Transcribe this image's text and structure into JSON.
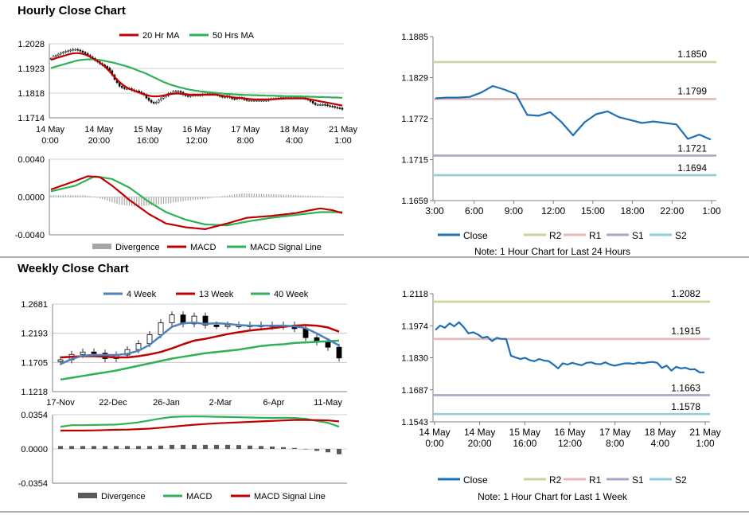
{
  "sections": {
    "hourly_title": "Hourly Close Chart",
    "weekly_title": "Weekly Close Chart"
  },
  "colors": {
    "ma_short": "#c00000",
    "ma_long": "#2eb157",
    "close": "#1f6fb3",
    "weekly_4": "#4f81bd",
    "r2": "#c3d69b",
    "r1": "#e6b9b8",
    "s1": "#b3a2c7",
    "s2": "#93cddd",
    "divergence_light": "#a6a6a6",
    "divergence_dark": "#595959",
    "separator": "#7f7f7f",
    "grid": "#bfbfbf"
  },
  "chart_data": [
    {
      "id": "hourly-price",
      "type": "candlestick",
      "legend": [
        "20 Hr MA",
        "50 Hrs MA"
      ],
      "y_ticks": [
        "1.2028",
        "1.1923",
        "1.1818",
        "1.1714"
      ],
      "ylim": [
        1.1714,
        1.2028
      ],
      "x_tick_labels": [
        [
          "14 May",
          "0:00"
        ],
        [
          "14 May",
          "20:00"
        ],
        [
          "15 May",
          "16:00"
        ],
        [
          "16 May",
          "12:00"
        ],
        [
          "17 May",
          "8:00"
        ],
        [
          "18 May",
          "4:00"
        ],
        [
          "21 May",
          "1:00"
        ]
      ],
      "n_bars": 120,
      "close": [
        1.1965,
        1.1975,
        1.1978,
        1.1984,
        1.1988,
        1.1992,
        1.1996,
        1.1998,
        1.2001,
        1.2004,
        1.2004,
        1.2001,
        1.1997,
        1.1992,
        1.1987,
        1.1979,
        1.1972,
        1.1966,
        1.1958,
        1.1952,
        1.1944,
        1.1938,
        1.1932,
        1.1925,
        1.1914,
        1.1896,
        1.1877,
        1.1863,
        1.1848,
        1.1842,
        1.1838,
        1.1838,
        1.1838,
        1.1832,
        1.1828,
        1.1828,
        1.1823,
        1.1817,
        1.1811,
        1.1798,
        1.1788,
        1.178,
        1.1776,
        1.178,
        1.1789,
        1.1797,
        1.1803,
        1.1808,
        1.1817,
        1.1819,
        1.1826,
        1.1826,
        1.1826,
        1.1822,
        1.1812,
        1.1808,
        1.1805,
        1.1808,
        1.181,
        1.181,
        1.181,
        1.181,
        1.1814,
        1.1814,
        1.1816,
        1.1816,
        1.1816,
        1.1816,
        1.1811,
        1.1805,
        1.1802,
        1.1802,
        1.1805,
        1.1801,
        1.1795,
        1.1794,
        1.1796,
        1.18,
        1.1797,
        1.1791,
        1.1788,
        1.1788,
        1.1788,
        1.1788,
        1.1788,
        1.1788,
        1.1788,
        1.1788,
        1.1788,
        1.1791,
        1.1794,
        1.1794,
        1.1796,
        1.1798,
        1.18,
        1.18,
        1.18,
        1.18,
        1.18,
        1.18,
        1.18,
        1.18,
        1.18,
        1.18,
        1.1796,
        1.179,
        1.1784,
        1.1776,
        1.177,
        1.177,
        1.177,
        1.177,
        1.1769,
        1.1765,
        1.1763,
        1.1762,
        1.1758,
        1.1756,
        1.1755,
        1.175
      ],
      "ma20": [
        1.196,
        1.1963,
        1.1967,
        1.197,
        1.1973,
        1.1976,
        1.1979,
        1.1982,
        1.1985,
        1.1987,
        1.1988,
        1.1988,
        1.1987,
        1.1985,
        1.1982,
        1.1978,
        1.1973,
        1.1967,
        1.1961,
        1.1955,
        1.1948,
        1.194,
        1.1931,
        1.1921,
        1.191,
        1.1898,
        1.1887,
        1.1876,
        1.1866,
        1.1857,
        1.1849,
        1.1843,
        1.1837,
        1.1833,
        1.1829,
        1.1825,
        1.1821,
        1.1817,
        1.1814,
        1.1811,
        1.1808,
        1.1806,
        1.1805,
        1.1805,
        1.1806,
        1.1807,
        1.1809,
        1.1811,
        1.1813,
        1.1815,
        1.1816,
        1.1817,
        1.1817,
        1.1816,
        1.1815,
        1.1814,
        1.1813,
        1.1812,
        1.1812,
        1.1812,
        1.1812,
        1.1812,
        1.1812,
        1.1812,
        1.1812,
        1.1812,
        1.1812,
        1.1812,
        1.1811,
        1.1809,
        1.1808,
        1.1806,
        1.1805,
        1.1803,
        1.1801,
        1.18,
        1.1799,
        1.1798,
        1.1797,
        1.1796,
        1.1795,
        1.1794,
        1.1793,
        1.1792,
        1.1792,
        1.1792,
        1.1792,
        1.1792,
        1.1792,
        1.1792,
        1.1793,
        1.1793,
        1.1794,
        1.1794,
        1.1795,
        1.1795,
        1.1796,
        1.1796,
        1.1796,
        1.1796,
        1.1796,
        1.1796,
        1.1796,
        1.1796,
        1.1795,
        1.1794,
        1.1792,
        1.179,
        1.1788,
        1.1786,
        1.1784,
        1.1782,
        1.178,
        1.1778,
        1.1776,
        1.1774,
        1.1772,
        1.177,
        1.1768,
        1.1766
      ],
      "ma50": [
        1.1925,
        1.1928,
        1.1931,
        1.1934,
        1.1937,
        1.194,
        1.1943,
        1.1946,
        1.1949,
        1.1952,
        1.1955,
        1.1957,
        1.1959,
        1.196,
        1.1961,
        1.1962,
        1.1962,
        1.1962,
        1.1961,
        1.196,
        1.1959,
        1.1957,
        1.1955,
        1.1953,
        1.1951,
        1.1949,
        1.1947,
        1.1944,
        1.1941,
        1.1938,
        1.1935,
        1.1932,
        1.1929,
        1.1925,
        1.1921,
        1.1917,
        1.1913,
        1.1909,
        1.1905,
        1.1901,
        1.1896,
        1.1891,
        1.1886,
        1.1881,
        1.1876,
        1.1871,
        1.1866,
        1.1862,
        1.1858,
        1.1854,
        1.1851,
        1.1848,
        1.1845,
        1.1842,
        1.184,
        1.1837,
        1.1835,
        1.1833,
        1.1831,
        1.1829,
        1.1828,
        1.1826,
        1.1825,
        1.1824,
        1.1823,
        1.1822,
        1.1821,
        1.182,
        1.1819,
        1.1818,
        1.1817,
        1.1816,
        1.1815,
        1.1815,
        1.1814,
        1.1813,
        1.1813,
        1.1812,
        1.1812,
        1.1811,
        1.1811,
        1.1811,
        1.181,
        1.181,
        1.181,
        1.1809,
        1.1809,
        1.1809,
        1.1808,
        1.1808,
        1.1808,
        1.1808,
        1.1807,
        1.1807,
        1.1807,
        1.1806,
        1.1806,
        1.1806,
        1.1806,
        1.1805,
        1.1805,
        1.1805,
        1.1805,
        1.1804,
        1.1804,
        1.1804,
        1.1803,
        1.1803,
        1.1803,
        1.1802,
        1.1802,
        1.1802,
        1.1801,
        1.1801,
        1.1801,
        1.18,
        1.18,
        1.18,
        1.1799,
        1.1799
      ]
    },
    {
      "id": "hourly-macd",
      "type": "macd",
      "legend": [
        "Divergence",
        "MACD",
        "MACD Signal Line"
      ],
      "y_ticks": [
        "0.0040",
        "0.0000",
        "-0.0040"
      ],
      "ylim": [
        -0.004,
        0.004
      ],
      "n_bars": 120,
      "macd_keys": [
        [
          0,
          0.0008
        ],
        [
          10,
          0.0017
        ],
        [
          15,
          0.0022
        ],
        [
          20,
          0.0021
        ],
        [
          25,
          0.0012
        ],
        [
          32,
          -0.0003
        ],
        [
          40,
          -0.0018
        ],
        [
          47,
          -0.0028
        ],
        [
          55,
          -0.0032
        ],
        [
          63,
          -0.0034
        ],
        [
          72,
          -0.0028
        ],
        [
          80,
          -0.0022
        ],
        [
          90,
          -0.002
        ],
        [
          100,
          -0.0017
        ],
        [
          110,
          -0.0012
        ],
        [
          115,
          -0.0014
        ],
        [
          119,
          -0.0017
        ]
      ],
      "signal_keys": [
        [
          0,
          0.0006
        ],
        [
          10,
          0.0012
        ],
        [
          18,
          0.0022
        ],
        [
          25,
          0.0019
        ],
        [
          32,
          0.001
        ],
        [
          40,
          -0.0005
        ],
        [
          47,
          -0.0016
        ],
        [
          55,
          -0.0024
        ],
        [
          63,
          -0.0029
        ],
        [
          72,
          -0.003
        ],
        [
          80,
          -0.0026
        ],
        [
          90,
          -0.0022
        ],
        [
          100,
          -0.0019
        ],
        [
          110,
          -0.0016
        ],
        [
          119,
          -0.0016
        ]
      ],
      "div_keys": [
        [
          0,
          0.0002
        ],
        [
          14,
          0.0002
        ],
        [
          18,
          0.0
        ],
        [
          22,
          -0.0003
        ],
        [
          28,
          -0.0008
        ],
        [
          34,
          -0.001
        ],
        [
          40,
          -0.0009
        ],
        [
          47,
          -0.0007
        ],
        [
          55,
          -0.0004
        ],
        [
          63,
          -0.0002
        ],
        [
          70,
          0.0001
        ],
        [
          78,
          0.0004
        ],
        [
          90,
          0.0003
        ],
        [
          100,
          0.0002
        ],
        [
          110,
          0.0001
        ],
        [
          119,
          -0.0001
        ]
      ]
    },
    {
      "id": "hourly-close-24h",
      "type": "line",
      "legend": [
        "Close",
        "R2",
        "R1",
        "S1",
        "S2"
      ],
      "note": "Note: 1 Hour Chart for Last 24 Hours",
      "y_ticks": [
        "1.1885",
        "1.1829",
        "1.1772",
        "1.1715",
        "1.1659"
      ],
      "ylim": [
        1.1659,
        1.1885
      ],
      "x_ticks": [
        "3:00",
        "6:00",
        "9:00",
        "12:00",
        "15:00",
        "18:00",
        "22:00",
        "1:00"
      ],
      "close": [
        1.18,
        1.1801,
        1.1801,
        1.1802,
        1.1808,
        1.1817,
        1.1812,
        1.1806,
        1.1777,
        1.1776,
        1.1781,
        1.1767,
        1.1749,
        1.1767,
        1.1778,
        1.1782,
        1.1774,
        1.177,
        1.1766,
        1.1768,
        1.1766,
        1.1764,
        1.1744,
        1.175,
        1.1743
      ],
      "levels": [
        {
          "name": "R2",
          "value": 1.185,
          "label": "1.1850"
        },
        {
          "name": "R1",
          "value": 1.1799,
          "label": "1.1799"
        },
        {
          "name": "S1",
          "value": 1.1721,
          "label": "1.1721"
        },
        {
          "name": "S2",
          "value": 1.1694,
          "label": "1.1694"
        }
      ]
    },
    {
      "id": "weekly-price",
      "type": "candlestick",
      "legend": [
        "4 Week",
        "13 Week",
        "40 Week"
      ],
      "y_ticks": [
        "1.2681",
        "1.2193",
        "1.1705",
        "1.1218"
      ],
      "ylim": [
        1.1218,
        1.2681
      ],
      "x_ticks": [
        "17-Nov",
        "22-Dec",
        "26-Jan",
        "2-Mar",
        "6-Apr",
        "11-May"
      ],
      "n_bars": 26,
      "close": [
        1.175,
        1.184,
        1.188,
        1.186,
        1.177,
        1.183,
        1.192,
        1.202,
        1.217,
        1.237,
        1.25,
        1.235,
        1.248,
        1.233,
        1.232,
        1.233,
        1.233,
        1.231,
        1.233,
        1.231,
        1.233,
        1.227,
        1.212,
        1.205,
        1.196,
        1.178
      ],
      "ma4": [
        1.168,
        1.176,
        1.182,
        1.183,
        1.183,
        1.183,
        1.185,
        1.19,
        1.2,
        1.215,
        1.23,
        1.236,
        1.237,
        1.235,
        1.236,
        1.235,
        1.233,
        1.232,
        1.232,
        1.232,
        1.232,
        1.231,
        1.228,
        1.219,
        1.209,
        1.199
      ],
      "ma13": [
        1.179,
        1.18,
        1.181,
        1.181,
        1.18,
        1.179,
        1.179,
        1.181,
        1.184,
        1.188,
        1.194,
        1.201,
        1.207,
        1.21,
        1.214,
        1.218,
        1.221,
        1.224,
        1.226,
        1.228,
        1.23,
        1.232,
        1.233,
        1.232,
        1.229,
        1.222
      ],
      "ma40": [
        1.142,
        1.145,
        1.148,
        1.151,
        1.154,
        1.157,
        1.161,
        1.165,
        1.169,
        1.173,
        1.177,
        1.18,
        1.183,
        1.186,
        1.188,
        1.19,
        1.192,
        1.195,
        1.198,
        1.2,
        1.201,
        1.203,
        1.204,
        1.205,
        1.206,
        1.207
      ]
    },
    {
      "id": "weekly-macd",
      "type": "macd",
      "legend": [
        "Divergence",
        "MACD",
        "MACD Signal Line"
      ],
      "y_ticks": [
        "0.0354",
        "0.0000",
        "-0.0354"
      ],
      "ylim": [
        -0.0354,
        0.0354
      ],
      "n_bars": 26,
      "macd": [
        0.023,
        0.0245,
        0.0245,
        0.0248,
        0.025,
        0.0252,
        0.0262,
        0.0275,
        0.0295,
        0.0315,
        0.033,
        0.0335,
        0.0336,
        0.0335,
        0.0333,
        0.033,
        0.0328,
        0.0325,
        0.0322,
        0.032,
        0.0322,
        0.032,
        0.0312,
        0.029,
        0.027,
        0.023
      ],
      "signal": [
        0.019,
        0.019,
        0.019,
        0.0192,
        0.0195,
        0.0198,
        0.02,
        0.0205,
        0.021,
        0.022,
        0.023,
        0.024,
        0.025,
        0.0258,
        0.0265,
        0.027,
        0.0275,
        0.028,
        0.0285,
        0.029,
        0.0295,
        0.03,
        0.03,
        0.0298,
        0.0295,
        0.0285
      ],
      "divergence": [
        0.003,
        0.003,
        0.003,
        0.003,
        0.003,
        0.003,
        0.003,
        0.003,
        0.003,
        0.0035,
        0.0042,
        0.0042,
        0.0042,
        0.0042,
        0.0042,
        0.0042,
        0.004,
        0.0035,
        0.003,
        0.0025,
        0.0018,
        0.001,
        0.0,
        -0.002,
        -0.0035,
        -0.0055
      ]
    },
    {
      "id": "weekly-close-1w",
      "type": "line",
      "legend": [
        "Close",
        "R2",
        "R1",
        "S1",
        "S2"
      ],
      "note": "Note: 1 Hour Chart for Last 1 Week",
      "y_ticks": [
        "1.2118",
        "1.1974",
        "1.1830",
        "1.1687",
        "1.1543"
      ],
      "ylim": [
        1.1543,
        1.2118
      ],
      "x_tick_labels": [
        [
          "14 May",
          "0:00"
        ],
        [
          "14 May",
          "20:00"
        ],
        [
          "15 May",
          "16:00"
        ],
        [
          "16 May",
          "12:00"
        ],
        [
          "17 May",
          "8:00"
        ],
        [
          "18 May",
          "4:00"
        ],
        [
          "21 May",
          "1:00"
        ]
      ],
      "close": [
        1.1955,
        1.1975,
        1.1965,
        1.1985,
        1.1972,
        1.199,
        1.1968,
        1.194,
        1.1945,
        1.1935,
        1.192,
        1.1925,
        1.1905,
        1.192,
        1.1915,
        1.1915,
        1.184,
        1.1832,
        1.1825,
        1.183,
        1.182,
        1.1815,
        1.1825,
        1.1818,
        1.1816,
        1.18,
        1.1783,
        1.1806,
        1.18,
        1.1808,
        1.1802,
        1.1797,
        1.1808,
        1.181,
        1.1803,
        1.1802,
        1.181,
        1.18,
        1.1795,
        1.18,
        1.1805,
        1.1806,
        1.1803,
        1.1809,
        1.1806,
        1.181,
        1.1812,
        1.1808,
        1.1785,
        1.1795,
        1.1773,
        1.179,
        1.1783,
        1.1786,
        1.1778,
        1.1779,
        1.1765,
        1.1765
      ],
      "levels": [
        {
          "name": "R2",
          "value": 1.2082,
          "label": "1.2082"
        },
        {
          "name": "R1",
          "value": 1.1915,
          "label": "1.1915"
        },
        {
          "name": "S1",
          "value": 1.1663,
          "label": "1.1663"
        },
        {
          "name": "S2",
          "value": 1.1578,
          "label": "1.1578"
        }
      ]
    }
  ]
}
